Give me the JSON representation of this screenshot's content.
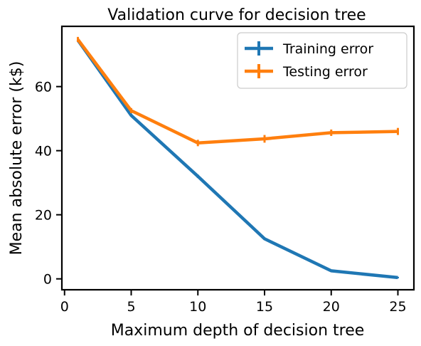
{
  "chart_data": {
    "type": "line",
    "title": "Validation curve for decision tree",
    "xlabel": "Maximum depth of decision tree",
    "ylabel": "Mean absolute error (k$)",
    "x": [
      1,
      5,
      10,
      15,
      20,
      25
    ],
    "xlim": [
      -0.2,
      26.2
    ],
    "ylim": [
      -3.4,
      78.8
    ],
    "xticks": [
      "0",
      "5",
      "10",
      "15",
      "20",
      "25"
    ],
    "yticks": [
      "0",
      "20",
      "40",
      "60"
    ],
    "grid": false,
    "legend_position": "top-right",
    "series": [
      {
        "name": "Training error",
        "color": "#1f77b4",
        "values": [
          74.5,
          51.0,
          32.0,
          12.5,
          2.5,
          0.4
        ],
        "errors": [
          0.4,
          0.4,
          0.5,
          0.3,
          0.2,
          0.1
        ]
      },
      {
        "name": "Testing error",
        "color": "#ff7f0e",
        "values": [
          74.7,
          52.5,
          42.4,
          43.7,
          45.6,
          46.0
        ],
        "errors": [
          0.8,
          0.8,
          1.0,
          1.2,
          1.0,
          1.1
        ]
      }
    ]
  }
}
